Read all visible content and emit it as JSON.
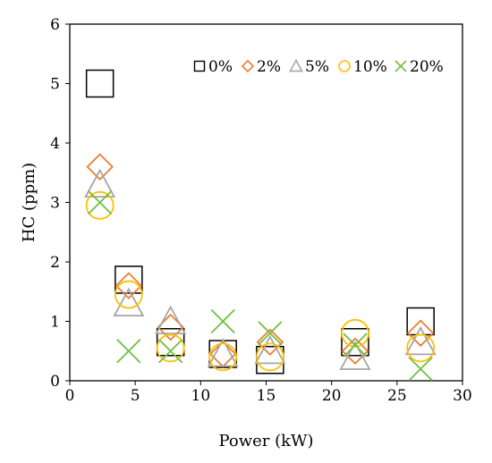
{
  "chart_data": {
    "type": "scatter",
    "title": "",
    "xlabel": "Power (kW)",
    "ylabel": "HC (ppm)",
    "xlim": [
      0,
      30
    ],
    "ylim": [
      0,
      6
    ],
    "xticks": [
      "0",
      "5",
      "10",
      "15",
      "20",
      "25",
      "30"
    ],
    "yticks": [
      "0",
      "1",
      "2",
      "3",
      "4",
      "5",
      "6"
    ],
    "grid": false,
    "legend": {
      "placement": "top-right",
      "orientation": "horizontal"
    },
    "series": [
      {
        "name": "0%",
        "marker": "square",
        "color": "#000000",
        "points": [
          {
            "x": 2.3,
            "y": 5.0
          },
          {
            "x": 4.5,
            "y": 1.7
          },
          {
            "x": 7.7,
            "y": 0.65
          },
          {
            "x": 11.7,
            "y": 0.45
          },
          {
            "x": 15.3,
            "y": 0.35
          },
          {
            "x": 21.8,
            "y": 0.65
          },
          {
            "x": 26.8,
            "y": 1.0
          }
        ]
      },
      {
        "name": "2%",
        "marker": "diamond",
        "color": "#ED7D31",
        "points": [
          {
            "x": 2.3,
            "y": 3.6
          },
          {
            "x": 4.5,
            "y": 1.6
          },
          {
            "x": 7.7,
            "y": 0.9
          },
          {
            "x": 11.7,
            "y": 0.45
          },
          {
            "x": 15.3,
            "y": 0.65
          },
          {
            "x": 21.8,
            "y": 0.5
          },
          {
            "x": 26.8,
            "y": 0.8
          }
        ]
      },
      {
        "name": "5%",
        "marker": "triangle",
        "color": "#A5A5A5",
        "points": [
          {
            "x": 2.3,
            "y": 3.3
          },
          {
            "x": 4.5,
            "y": 1.3
          },
          {
            "x": 7.7,
            "y": 1.0
          },
          {
            "x": 11.7,
            "y": 0.45
          },
          {
            "x": 15.3,
            "y": 0.5
          },
          {
            "x": 21.8,
            "y": 0.4
          },
          {
            "x": 26.8,
            "y": 0.65
          }
        ]
      },
      {
        "name": "10%",
        "marker": "circle",
        "color": "#FFC000",
        "points": [
          {
            "x": 2.3,
            "y": 2.95
          },
          {
            "x": 4.5,
            "y": 1.45
          },
          {
            "x": 7.7,
            "y": 0.55
          },
          {
            "x": 11.7,
            "y": 0.4
          },
          {
            "x": 15.3,
            "y": 0.4
          },
          {
            "x": 21.8,
            "y": 0.8
          },
          {
            "x": 26.8,
            "y": 0.55
          }
        ]
      },
      {
        "name": "20%",
        "marker": "x",
        "color": "#70C040",
        "points": [
          {
            "x": 2.3,
            "y": 3.0
          },
          {
            "x": 4.5,
            "y": 0.5
          },
          {
            "x": 7.7,
            "y": 0.5
          },
          {
            "x": 11.7,
            "y": 1.0
          },
          {
            "x": 15.3,
            "y": 0.8
          },
          {
            "x": 21.8,
            "y": 0.6
          },
          {
            "x": 26.8,
            "y": 0.2
          }
        ]
      }
    ]
  }
}
